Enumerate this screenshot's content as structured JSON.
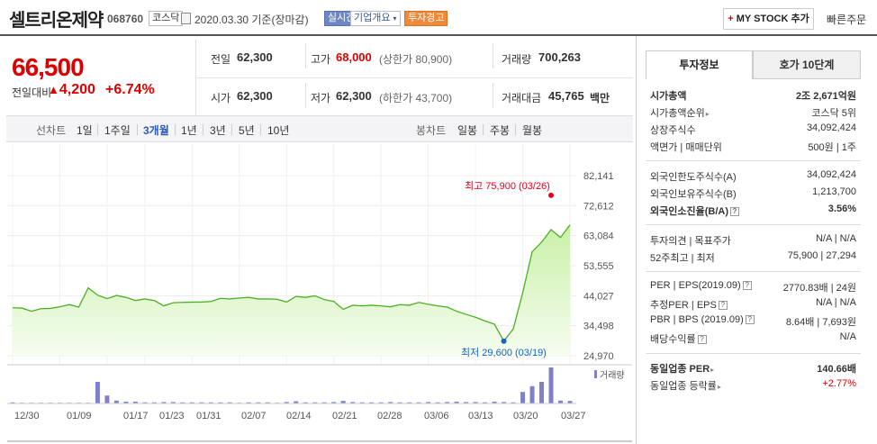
{
  "header": {
    "company": "셀트리온제약",
    "code": "068760",
    "market": "코스닥",
    "date_text": "2020.03.30 기준(장마감)",
    "live_label": "실시간",
    "company_info_label": "기업개요",
    "warning_label": "투자경고",
    "mystock_label": "MY STOCK 추가",
    "quick_order_label": "빠른주문"
  },
  "price": {
    "current": "66,500",
    "change_label": "전일대비",
    "change_value": "4,200",
    "change_pct": "+6.74%"
  },
  "quote": {
    "prev_label": "전일",
    "prev_value": "62,300",
    "high_label": "고가",
    "high_value": "68,000",
    "upper_limit": "(상한가 80,900)",
    "volume_label": "거래량",
    "volume_value": "700,263",
    "open_label": "시가",
    "open_value": "62,300",
    "low_label": "저가",
    "low_value": "62,300",
    "lower_limit": "(하한가 43,700)",
    "amount_label": "거래대금",
    "amount_value": "45,765",
    "amount_unit": "백만"
  },
  "period_bar": {
    "line_chart_label": "선차트",
    "periods": [
      "1일",
      "1주일",
      "3개월",
      "1년",
      "3년",
      "5년",
      "10년"
    ],
    "active_period": "3개월",
    "candle_label": "봉차트",
    "candles": [
      "일봉",
      "주봉",
      "월봉"
    ]
  },
  "tabs": [
    "투자정보",
    "호가 10단계"
  ],
  "invest_info": {
    "market_cap_label": "시가총액",
    "market_cap_value": "2조 2,671억원",
    "market_cap_rank_label": "시가총액순위",
    "market_cap_rank_value": "코스닥 5위",
    "shares_label": "상장주식수",
    "shares_value": "34,092,424",
    "par_label": "액면가 | 매매단위",
    "par_value": "500원 | 1주",
    "foreign_limit_label": "외국인한도주식수(A)",
    "foreign_limit_value": "34,092,424",
    "foreign_hold_label": "외국인보유주식수(B)",
    "foreign_hold_value": "1,213,700",
    "foreign_ratio_label": "외국인소진율(B/A)",
    "foreign_ratio_value": "3.56%",
    "opinion_label": "투자의견 | 목표주가",
    "opinion_value": "N/A | N/A",
    "week52_label": "52주최고 | 최저",
    "week52_value": "75,900 | 27,294",
    "per_label": "PER | EPS(2019.09)",
    "per_value": "2770.83배 | 24원",
    "est_per_label": "추정PER | EPS",
    "est_per_value": "N/A | N/A",
    "pbr_label": "PBR | BPS (2019.09)",
    "pbr_value": "8.64배 | 7,693원",
    "dividend_label": "배당수익률",
    "dividend_value": "N/A",
    "sector_per_label": "동일업종 PER",
    "sector_per_value": "140.66배",
    "sector_rate_label": "동일업종 등락률",
    "sector_rate_value": "+2.77%"
  },
  "chart_data": {
    "type": "area",
    "y_ticks": [
      "82,141",
      "72,612",
      "63,084",
      "53,555",
      "44,027",
      "34,498",
      "24,970"
    ],
    "ylim": [
      24970,
      82141
    ],
    "x_labels": [
      "12/30",
      "01/09",
      "01/17",
      "01/23",
      "01/31",
      "02/07",
      "02/14",
      "02/21",
      "02/28",
      "03/06",
      "03/13",
      "03/20",
      "03/27"
    ],
    "values": [
      40200,
      40100,
      39100,
      39900,
      40000,
      40500,
      41200,
      40400,
      46500,
      44200,
      43100,
      44100,
      43500,
      42500,
      43000,
      42500,
      40800,
      41800,
      41900,
      42000,
      42000,
      42200,
      43200,
      43000,
      43300,
      43500,
      43000,
      43000,
      42900,
      42000,
      43800,
      43500,
      44000,
      42800,
      42200,
      39700,
      41000,
      40800,
      41000,
      40800,
      40500,
      41200,
      41000,
      41900,
      41300,
      40800,
      40400,
      39100,
      38100,
      37200,
      36000,
      35000,
      29600,
      33500,
      45000,
      58000,
      61000,
      65000,
      62500,
      66500
    ],
    "volume": [
      3,
      2,
      2,
      2,
      2,
      2,
      2,
      2,
      2,
      60,
      22,
      8,
      5,
      5,
      3,
      3,
      4,
      4,
      3,
      3,
      3,
      3,
      3,
      3,
      2,
      3,
      3,
      3,
      2,
      4,
      6,
      3,
      3,
      3,
      4,
      7,
      4,
      3,
      3,
      3,
      4,
      3,
      3,
      3,
      4,
      3,
      4,
      5,
      4,
      4,
      3,
      5,
      4,
      3,
      32,
      48,
      60,
      100,
      8,
      7
    ],
    "high_label": "최고 75,900 (03/26)",
    "low_label": "최저 29,600 (03/19)",
    "volume_label": "거래량",
    "colors": {
      "line": "#4cb024",
      "fill_top": "#c9f0a8",
      "fill_bottom": "#f6fdf0",
      "volume": "#8080c8",
      "high": "#e4001b",
      "low": "#1565c0"
    }
  }
}
